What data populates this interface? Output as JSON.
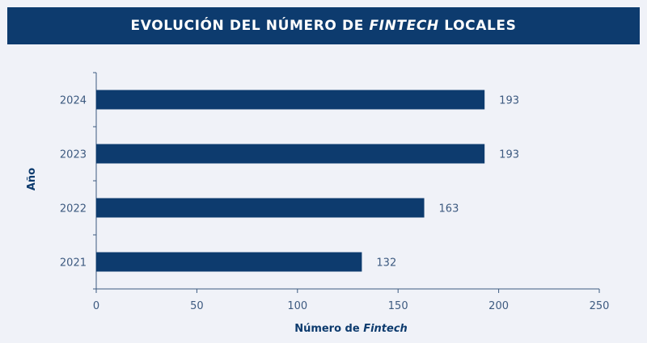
{
  "title": {
    "before": "EVOLUCIÓN DEL NÚMERO DE ",
    "italic": "FINTECH",
    "after": " LOCALES"
  },
  "chart_data": {
    "type": "bar",
    "orientation": "horizontal",
    "categories": [
      "2024",
      "2023",
      "2022",
      "2021"
    ],
    "values": [
      193,
      193,
      163,
      132
    ],
    "xlabel": {
      "before": "Número de ",
      "italic": "Fintech"
    },
    "ylabel": "Año",
    "xlim": [
      0,
      250
    ],
    "xticks": [
      "0",
      "50",
      "100",
      "150",
      "200",
      "250"
    ],
    "grid": false,
    "legend": "none",
    "bar_color": "#0d3b6e"
  }
}
